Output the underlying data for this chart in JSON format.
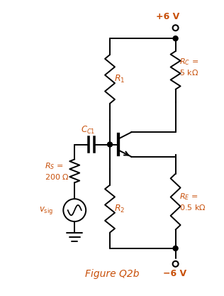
{
  "title": "Figure Q2b",
  "title_color": "#c8500a",
  "title_fontsize": 10,
  "bg_color": "#ffffff",
  "line_color": "#000000",
  "label_color": "#c8500a",
  "vcc": "+6 V",
  "vee": "−6 V",
  "figw": 3.16,
  "figh": 4.17,
  "dpi": 100
}
